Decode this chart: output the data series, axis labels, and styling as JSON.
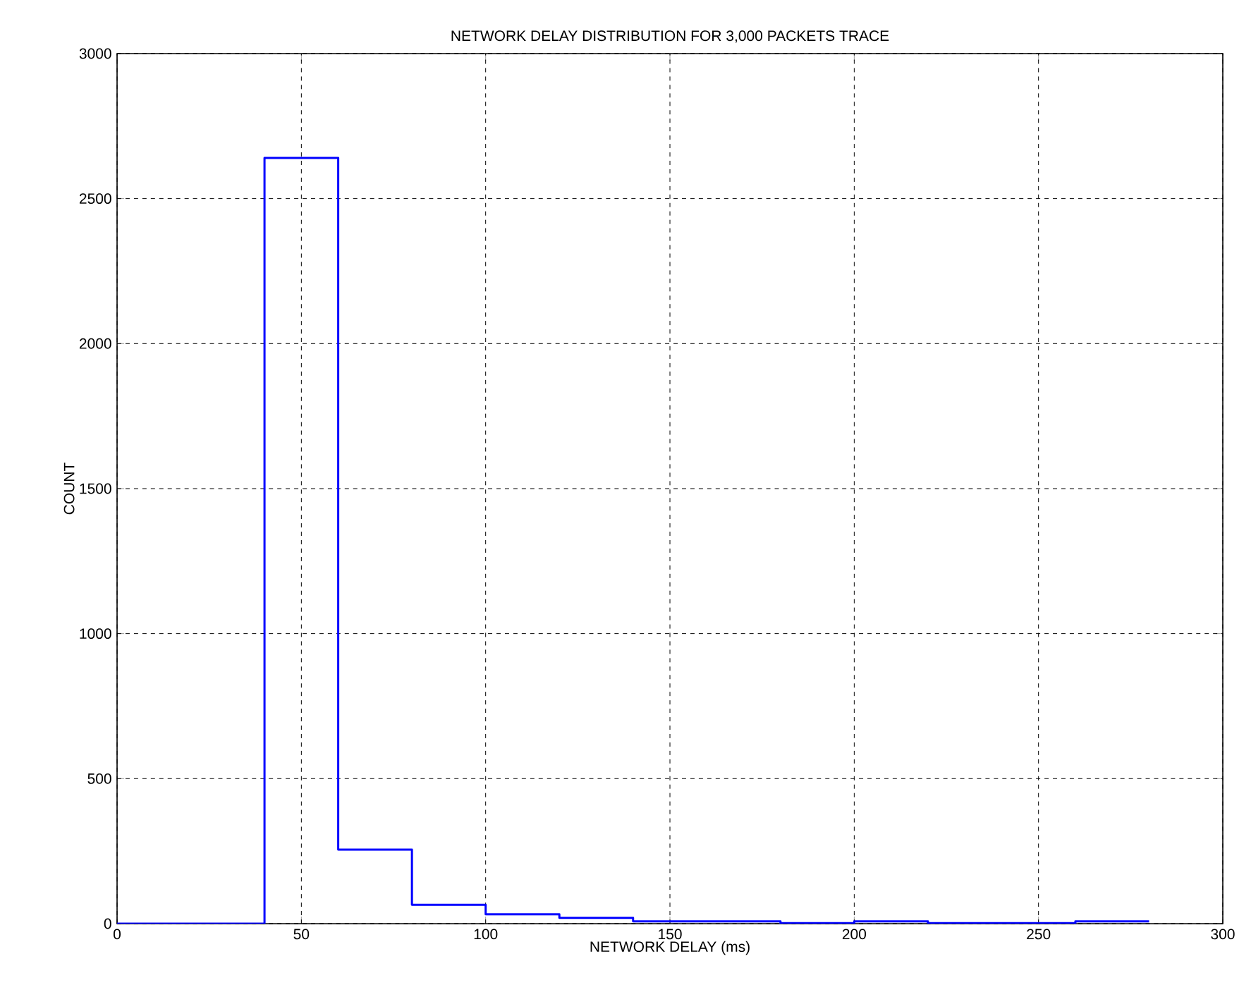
{
  "chart_data": {
    "type": "histogram",
    "title": "NETWORK DELAY DISTRIBUTION FOR 3,000 PACKETS TRACE",
    "xlabel": "NETWORK DELAY (ms)",
    "ylabel": "COUNT",
    "bins": [
      0,
      20,
      40,
      60,
      80,
      100,
      120,
      140,
      160,
      180,
      200,
      220,
      240,
      260,
      280
    ],
    "values": [
      0,
      0,
      2640,
      255,
      65,
      32,
      20,
      8,
      8,
      2,
      8,
      2,
      2,
      8
    ],
    "color": "#0000ff",
    "xlim": [
      0,
      300
    ],
    "ylim": [
      0,
      3000
    ],
    "xticks": [
      0,
      50,
      100,
      150,
      200,
      250,
      300
    ],
    "yticks": [
      0,
      500,
      1000,
      1500,
      2000,
      2500,
      3000
    ],
    "grid": true
  }
}
